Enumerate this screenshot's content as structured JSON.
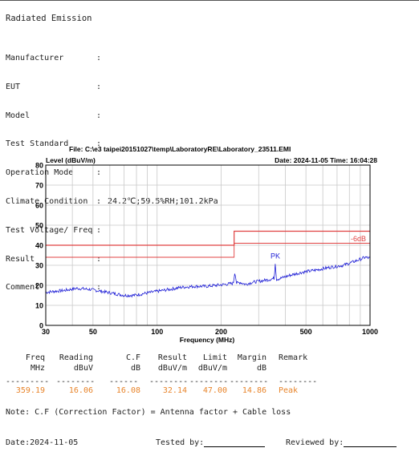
{
  "title": "Radiated Emission",
  "info": [
    {
      "label": "Manufacturer",
      "value": ""
    },
    {
      "label": "EUT",
      "value": ""
    },
    {
      "label": "Model",
      "value": ""
    },
    {
      "label": "Test Standard",
      "value": ""
    },
    {
      "label": "Operation Mode",
      "value": ""
    },
    {
      "label": "Climate Condition",
      "value": "24.2℃;59.5%RH;101.2kPa"
    },
    {
      "label": "Test Voltage/ Freq",
      "value": ""
    },
    {
      "label": "Result",
      "value": ""
    },
    {
      "label": "Comment",
      "value": ""
    }
  ],
  "plot": {
    "file_label": "File: C:\\e3 taipei20151027\\temp\\LaboratoryRE\\Laboratory_23511.EMI",
    "date_label": "Date: 2024-11-05  Time: 16:04:28",
    "ylabel": "Level (dBuV/m)",
    "xlabel": "Frequency (MHz)",
    "margin_label": "-6dB",
    "peak_label": "PK",
    "colors": {
      "trace": "#1f1fd6",
      "limit": "#e04040",
      "grid": "#c8c8c8"
    }
  },
  "chart_data": {
    "type": "line",
    "x_scale": "log",
    "xlim": [
      30,
      1000
    ],
    "ylim": [
      0,
      80
    ],
    "x_ticks": [
      30,
      50,
      100,
      200,
      500,
      1000
    ],
    "y_ticks": [
      0,
      10,
      20,
      30,
      40,
      50,
      60,
      70,
      80
    ],
    "series": [
      {
        "name": "Level",
        "x": [
          30,
          33,
          37,
          42,
          48,
          55,
          62,
          70,
          78,
          88,
          100,
          115,
          130,
          150,
          170,
          190,
          210,
          228,
          232,
          236,
          245,
          260,
          280,
          300,
          320,
          340,
          355,
          359.19,
          363,
          380,
          420,
          480,
          550,
          650,
          750,
          850,
          950,
          1000
        ],
        "y": [
          16.5,
          17,
          17.5,
          18.5,
          18,
          17,
          16,
          15,
          15,
          16,
          17,
          18,
          19,
          19.5,
          19.5,
          20,
          20.5,
          21,
          27,
          21,
          21.5,
          20.5,
          21.5,
          22,
          22.5,
          23,
          23.5,
          32.14,
          23,
          23.5,
          25,
          26.5,
          27.5,
          29,
          30,
          32,
          34,
          33.5
        ]
      },
      {
        "name": "Limit",
        "x": [
          30,
          230,
          230,
          1000
        ],
        "y": [
          40,
          40,
          47,
          47
        ]
      },
      {
        "name": "Limit -6dB",
        "x": [
          30,
          230,
          230,
          1000
        ],
        "y": [
          34,
          34,
          41,
          41
        ]
      }
    ]
  },
  "table": {
    "headers1": [
      "Freq",
      "Reading",
      "C.F",
      "Result",
      "Limit",
      "Margin",
      "Remark"
    ],
    "headers2": [
      "MHz",
      "dBuV",
      "dB",
      "dBuV/m",
      "dBuV/m",
      "dB",
      ""
    ],
    "dashes": [
      "---------",
      "--------",
      "------",
      "--------",
      "--------",
      "--------",
      "--------"
    ],
    "rows": [
      [
        "359.19",
        "16.06",
        "16.08",
        "32.14",
        "47.00",
        "14.86",
        "Peak"
      ]
    ]
  },
  "note": "Note: C.F (Correction Factor) = Antenna factor + Cable loss",
  "footer": {
    "date": "Date:2024-11-05",
    "tested": "Tested by:",
    "reviewed": "Reviewed by:"
  }
}
